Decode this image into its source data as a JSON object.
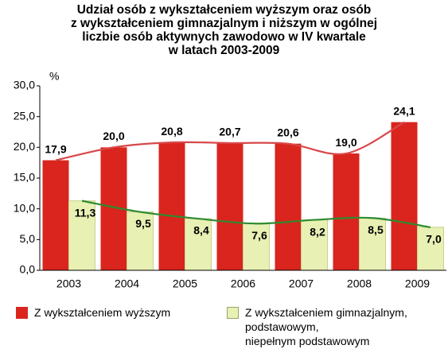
{
  "chart_data": {
    "type": "bar",
    "title": "Udział osób z wykształceniem wyższym oraz osób\nz wykształceniem gimnazjalnym i niższym w ogólnej\nliczbie osób aktywnych zawodowo w IV kwartale\nw latach 2003-2009",
    "y_label": "%",
    "categories": [
      "2003",
      "2004",
      "2005",
      "2006",
      "2007",
      "2008",
      "2009"
    ],
    "series": [
      {
        "name": "Z wykształceniem wyższym",
        "color": "#d9251d",
        "line_color": "#d8484a",
        "values": [
          17.9,
          20.0,
          20.8,
          20.7,
          20.6,
          19.0,
          24.1
        ],
        "value_labels": [
          "17,9",
          "20,0",
          "20,8",
          "20,7",
          "20,6",
          "19,0",
          "24,1"
        ]
      },
      {
        "name": "Z wykształceniem gimnazjalnym,\npodstawowym,\nniepełnym podstawowym",
        "color": "#e8f0b4",
        "line_color": "#2e8b2f",
        "values": [
          11.3,
          9.5,
          8.4,
          7.6,
          8.2,
          8.5,
          7.0
        ],
        "value_labels": [
          "11,3",
          "9,5",
          "8,4",
          "7,6",
          "8,2",
          "8,5",
          "7,0"
        ]
      }
    ],
    "ylim": [
      0,
      30
    ],
    "yticks": [
      {
        "value": 0,
        "label": "0,0"
      },
      {
        "value": 5,
        "label": "5,0"
      },
      {
        "value": 10,
        "label": "10,0"
      },
      {
        "value": 15,
        "label": "15,0"
      },
      {
        "value": 20,
        "label": "20,0"
      },
      {
        "value": 25,
        "label": "25,0"
      },
      {
        "value": 30,
        "label": "30,0"
      }
    ],
    "grid": false
  }
}
